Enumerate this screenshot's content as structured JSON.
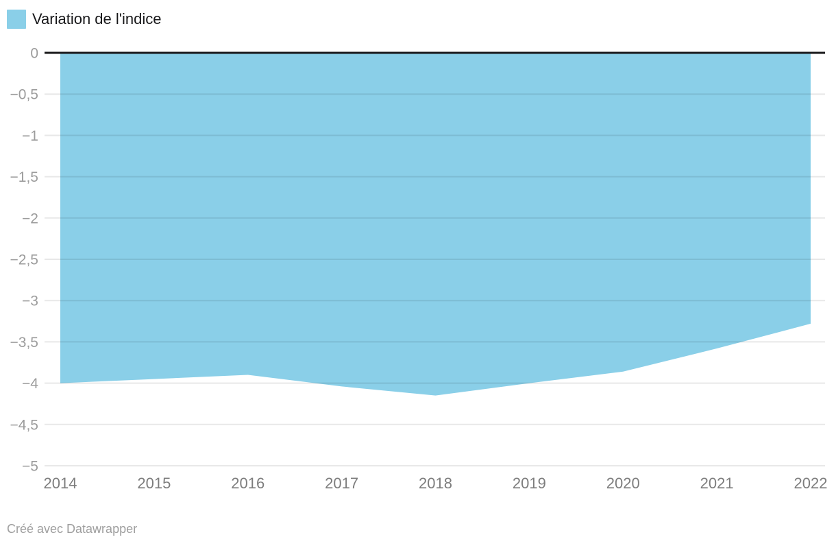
{
  "legend": {
    "label": "Variation de l'indice",
    "swatch_color": "#8acfe8"
  },
  "footer": {
    "attribution": "Créé avec Datawrapper"
  },
  "chart_data": {
    "type": "area",
    "title": "",
    "series_name": "Variation de l'indice",
    "x": [
      2014,
      2015,
      2016,
      2017,
      2018,
      2019,
      2020,
      2021,
      2022
    ],
    "values": [
      -4.0,
      -3.95,
      -3.9,
      -4.04,
      -4.15,
      -4.0,
      -3.86,
      -3.58,
      -3.28
    ],
    "ylim": [
      -5,
      0
    ],
    "y_tick_values": [
      0,
      -0.5,
      -1,
      -1.5,
      -2,
      -2.5,
      -3,
      -3.5,
      -4,
      -4.5,
      -5
    ],
    "y_tick_labels": [
      "0",
      "−0,5",
      "−1",
      "−1,5",
      "−2",
      "−2,5",
      "−3",
      "−3,5",
      "−4",
      "−4,5",
      "−5"
    ],
    "x_tick_labels": [
      "2014",
      "2015",
      "2016",
      "2017",
      "2018",
      "2019",
      "2020",
      "2021",
      "2022"
    ],
    "grid": true,
    "legend_position": "top-left",
    "colors": {
      "area_fill": "#8acfe8",
      "zero_line": "#18181a",
      "gridline": "rgba(0,0,0,0.09)",
      "y_tick_text": "#9c9c9c",
      "x_tick_text": "#7d7d7d"
    }
  }
}
